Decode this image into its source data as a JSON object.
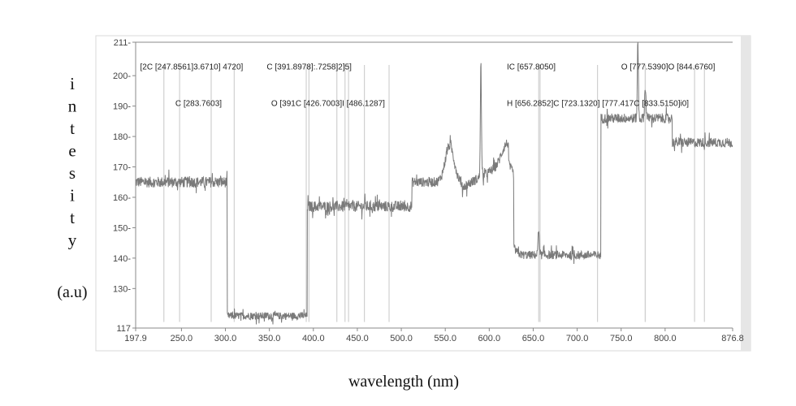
{
  "chart_data": {
    "type": "line",
    "title": "",
    "xlabel": "wavelength (nm)",
    "ylabel_letters": [
      "i",
      "n",
      "t",
      "e",
      "s",
      "i",
      "t",
      "y"
    ],
    "ylabel_unit": "(a.u)",
    "xlim": [
      197.9,
      876.8
    ],
    "ylim": [
      117,
      211
    ],
    "x_ticks": [
      {
        "value": 197.9,
        "label": "197.9"
      },
      {
        "value": 250,
        "label": "250.0"
      },
      {
        "value": 300,
        "label": "300.0"
      },
      {
        "value": 350,
        "label": "350.0"
      },
      {
        "value": 400,
        "label": "400.0"
      },
      {
        "value": 450,
        "label": "450.0"
      },
      {
        "value": 500,
        "label": "500.0"
      },
      {
        "value": 550,
        "label": "550.0"
      },
      {
        "value": 600,
        "label": "600.0"
      },
      {
        "value": 650,
        "label": "650.0"
      },
      {
        "value": 700,
        "label": "700.0"
      },
      {
        "value": 750,
        "label": "750.0"
      },
      {
        "value": 800,
        "label": "800.0"
      },
      {
        "value": 876.8,
        "label": "876.8"
      }
    ],
    "y_ticks": [
      {
        "value": 117,
        "label": "117"
      },
      {
        "value": 130,
        "label": "130-"
      },
      {
        "value": 140,
        "label": "140-"
      },
      {
        "value": 150,
        "label": "150-"
      },
      {
        "value": 160,
        "label": "160-"
      },
      {
        "value": 170,
        "label": "170-"
      },
      {
        "value": 180,
        "label": "180-"
      },
      {
        "value": 190,
        "label": "190-"
      },
      {
        "value": 200,
        "label": "200-"
      },
      {
        "value": 211,
        "label": "211-"
      }
    ],
    "segments": [
      {
        "x0": 197.9,
        "x1": 302,
        "y": 165,
        "noise": 1.8
      },
      {
        "x0": 302,
        "x1": 393,
        "y": 121,
        "noise": 1.2
      },
      {
        "x0": 393,
        "x1": 512,
        "y": 157,
        "noise": 1.8
      },
      {
        "x0": 512,
        "x1": 628,
        "y": 165,
        "noise": 1.6
      },
      {
        "x0": 628,
        "x1": 727,
        "y": 141,
        "noise": 1.4
      },
      {
        "x0": 727,
        "x1": 808,
        "y": 186,
        "noise": 1.6
      },
      {
        "x0": 808,
        "x1": 876.8,
        "y": 178,
        "noise": 1.6
      }
    ],
    "peaks": [
      {
        "x": 555,
        "y": 177,
        "width": 5
      },
      {
        "x": 590.5,
        "y": 203,
        "width": 0.6
      },
      {
        "x": 620,
        "y": 171,
        "width": 6
      },
      {
        "x": 656.3,
        "y": 149,
        "width": 0.8
      },
      {
        "x": 769,
        "y": 211,
        "width": 0.6
      },
      {
        "x": 777.5,
        "y": 196,
        "width": 0.8
      }
    ],
    "ramp": {
      "x0": 568,
      "x1": 622,
      "y0": 163,
      "y1": 172
    },
    "markers": [
      {
        "x": 230,
        "y_end": 119
      },
      {
        "x": 247.9,
        "y_end": 119
      },
      {
        "x": 283.8,
        "y_end": 119
      },
      {
        "x": 310,
        "y_end": 119
      },
      {
        "x": 391.9,
        "y_end": 119
      },
      {
        "x": 395,
        "y_end": 119
      },
      {
        "x": 426.7,
        "y_end": 119
      },
      {
        "x": 436,
        "y_end": 119
      },
      {
        "x": 440,
        "y_end": 119
      },
      {
        "x": 458,
        "y_end": 119
      },
      {
        "x": 486.1,
        "y_end": 119
      },
      {
        "x": 656.3,
        "y_end": 119
      },
      {
        "x": 657.8,
        "y_end": 119
      },
      {
        "x": 723.1,
        "y_end": 119
      },
      {
        "x": 777.4,
        "y_end": 119
      },
      {
        "x": 777.5,
        "y_end": 119
      },
      {
        "x": 833.5,
        "y_end": 119
      },
      {
        "x": 844.7,
        "y_end": 119
      }
    ],
    "annotations": [
      {
        "text": "[2C [247.8561]3.6710] 4720]",
        "x": 203,
        "y": 202
      },
      {
        "text": "C [391.8978]:.7258]2]5]",
        "x": 347,
        "y": 202
      },
      {
        "text": "IC [657.8050]",
        "x": 620,
        "y": 202
      },
      {
        "text": "O [777.5390]O [844.6760]",
        "x": 750,
        "y": 202
      },
      {
        "text": "C [283.7603]",
        "x": 243,
        "y": 190
      },
      {
        "text": "O [391C [426.7003]I [486.1287]",
        "x": 352,
        "y": 190
      },
      {
        "text": "H [656.2852]C [723.1320] [777.417C [833.5150]i0]",
        "x": 620,
        "y": 190
      }
    ]
  }
}
